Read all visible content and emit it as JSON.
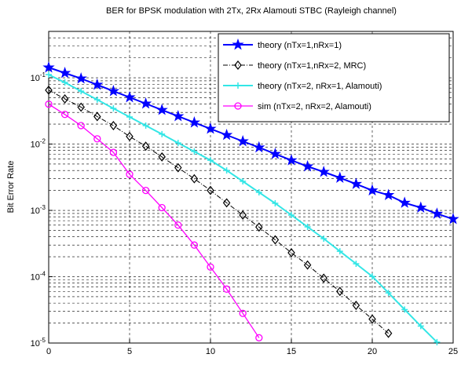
{
  "chart_data": {
    "type": "line",
    "title": "BER for BPSK modulation with 2Tx, 2Rx Alamouti STBC (Rayleigh channel)",
    "y_label": "Bit Error Rate",
    "x": [
      0,
      1,
      2,
      3,
      4,
      5,
      6,
      7,
      8,
      9,
      10,
      11,
      12,
      13,
      14,
      15,
      16,
      17,
      18,
      19,
      20,
      21,
      22,
      23,
      24,
      25
    ],
    "xlim": [
      0,
      25
    ],
    "xticks": [
      0,
      5,
      10,
      15,
      20,
      25
    ],
    "ylim": [
      1e-05,
      0.5
    ],
    "y_scale": "log",
    "yticks": [
      {
        "value": 1e-05,
        "label": "10^-5"
      },
      {
        "value": 0.0001,
        "label": "10^-4"
      },
      {
        "value": 0.001,
        "label": "10^-3"
      },
      {
        "value": 0.01,
        "label": "10^-2"
      },
      {
        "value": 0.1,
        "label": "10^-1"
      }
    ],
    "yminorticks": [
      2e-05,
      3e-05,
      4e-05,
      5e-05,
      6e-05,
      7e-05,
      8e-05,
      9e-05,
      0.0002,
      0.0003,
      0.0004,
      0.0005,
      0.0006,
      0.0007,
      0.0008,
      0.0009,
      0.002,
      0.003,
      0.004,
      0.005,
      0.006,
      0.007,
      0.008,
      0.009,
      0.02,
      0.03,
      0.04,
      0.05,
      0.06,
      0.07,
      0.08,
      0.09,
      0.2,
      0.3,
      0.4
    ],
    "grid": true,
    "legend": "upper right",
    "series": [
      {
        "name": "theory (nTx=1,nRx=1)",
        "color": "#0000ff",
        "marker": "star",
        "dash": "solid",
        "width": 2,
        "values": [
          0.1426,
          0.1178,
          0.0973,
          0.0783,
          0.0629,
          0.0506,
          0.0407,
          0.0327,
          0.0263,
          0.0211,
          0.017,
          0.0137,
          0.011,
          0.0089,
          0.0071,
          0.0057,
          0.0046,
          0.0038,
          0.0031,
          0.0025,
          0.002,
          0.0017,
          0.0013,
          0.0011,
          0.00089,
          0.00074
        ]
      },
      {
        "name": "theory (nTx=1,nRx=2, MRC)",
        "color": "#000000",
        "marker": "diamond",
        "dash": "dashdot",
        "width": 1,
        "values": [
          0.065,
          0.048,
          0.036,
          0.026,
          0.019,
          0.013,
          0.0093,
          0.0064,
          0.0044,
          0.003,
          0.002,
          0.0013,
          0.00085,
          0.00056,
          0.00036,
          0.00023,
          0.00015,
          9.5e-05,
          6e-05,
          3.7e-05,
          2.3e-05,
          1.4e-05,
          null,
          null,
          null,
          null
        ]
      },
      {
        "name": "theory (nTx=2, nRx=1, Alamouti)",
        "color": "#33e6e6",
        "marker": "plus",
        "dash": "solid",
        "width": 2,
        "values": [
          0.1115,
          0.0849,
          0.0629,
          0.0467,
          0.0345,
          0.0256,
          0.019,
          0.0141,
          0.0104,
          0.00773,
          0.00571,
          0.00401,
          0.00274,
          0.00187,
          0.00128,
          0.00085,
          0.000564,
          0.000375,
          0.000242,
          0.000157,
          0.000101,
          5.7e-05,
          3.2e-05,
          1.8e-05,
          1.03e-05,
          null
        ]
      },
      {
        "name": "sim (nTx=2, nRx=2, Alamouti)",
        "color": "#ff00ff",
        "marker": "circle",
        "dash": "solid",
        "width": 1.3,
        "values": [
          0.04,
          0.028,
          0.019,
          0.012,
          0.0075,
          0.0035,
          0.002,
          0.0011,
          0.0006,
          0.0003,
          0.00014,
          6.5e-05,
          2.8e-05,
          1.2e-05,
          null,
          null,
          null,
          null,
          null,
          null,
          null,
          null,
          null,
          null,
          null,
          null
        ]
      }
    ]
  }
}
